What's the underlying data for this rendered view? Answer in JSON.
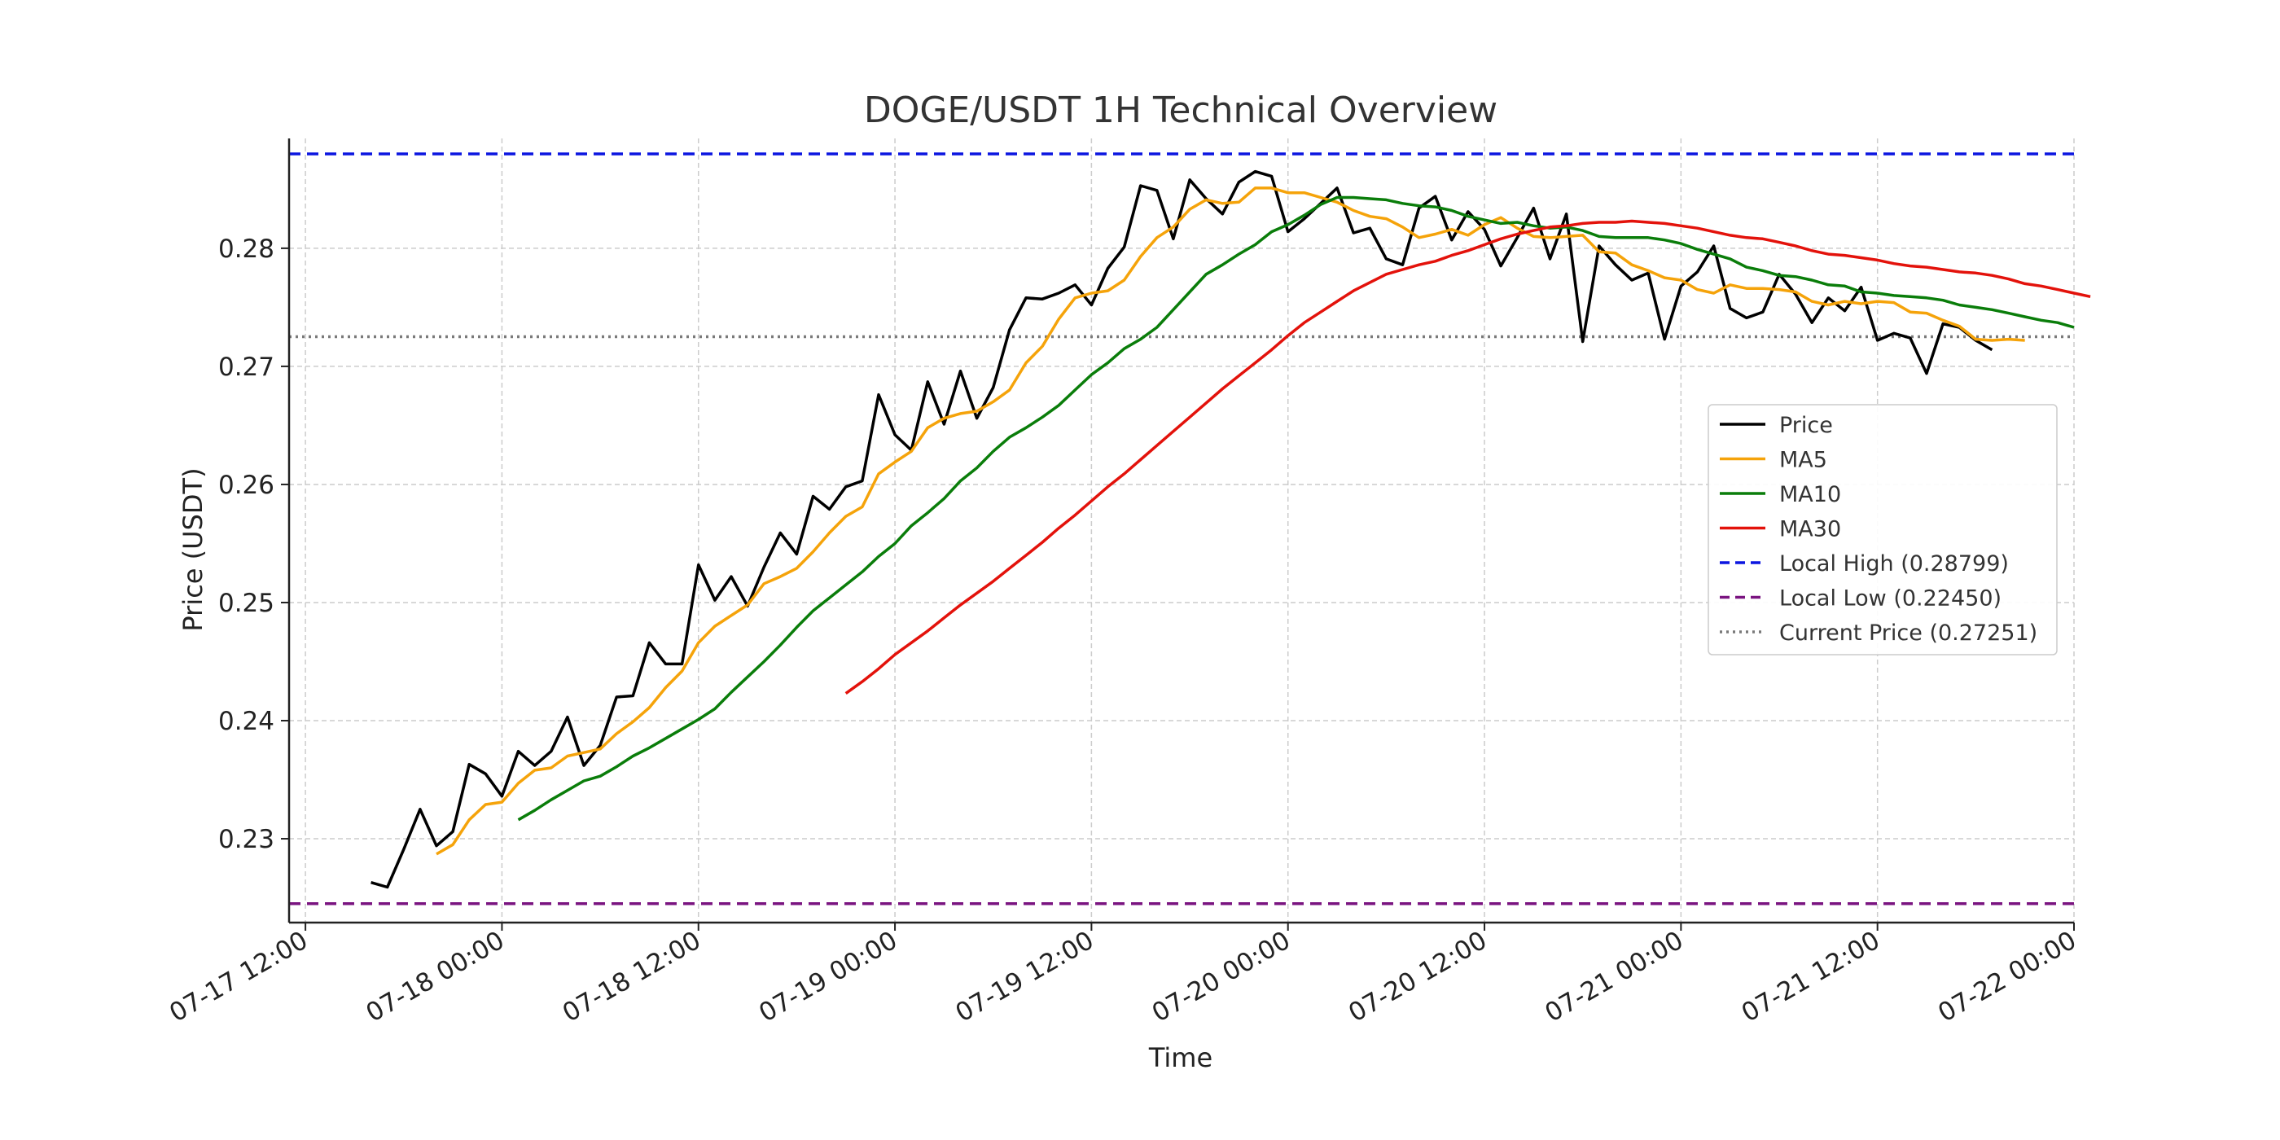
{
  "chart_data": {
    "type": "line",
    "title": "DOGE/USDT 1H Technical Overview",
    "xlabel": "Time",
    "ylabel": "Price (USDT)",
    "x_tick_labels": [
      "07-17 12:00",
      "07-18 00:00",
      "07-18 12:00",
      "07-19 00:00",
      "07-19 12:00",
      "07-20 00:00",
      "07-20 12:00",
      "07-21 00:00",
      "07-21 12:00",
      "07-22 00:00"
    ],
    "y_ticks": [
      0.23,
      0.24,
      0.25,
      0.26,
      0.27,
      0.28
    ],
    "y_tick_labels": [
      "0.23",
      "0.24",
      "0.25",
      "0.26",
      "0.27",
      "0.28"
    ],
    "xlim": [
      "07-17 11:00",
      "07-22 00:00"
    ],
    "ylim": [
      0.2229,
      0.2893
    ],
    "grid": true,
    "legend_position": "center-right",
    "series": [
      {
        "name": "Price",
        "color": "#000000",
        "x_start": "07-17 16:00",
        "step_hours": 1,
        "values": [
          0.2263,
          0.2259,
          0.2291,
          0.2325,
          0.2294,
          0.2306,
          0.2363,
          0.2355,
          0.2336,
          0.2374,
          0.2362,
          0.2374,
          0.2403,
          0.2362,
          0.2379,
          0.242,
          0.2421,
          0.2466,
          0.2448,
          0.2448,
          0.2532,
          0.2502,
          0.2522,
          0.2497,
          0.253,
          0.2559,
          0.2541,
          0.259,
          0.2579,
          0.2598,
          0.2603,
          0.2676,
          0.2642,
          0.2629,
          0.2687,
          0.2651,
          0.2696,
          0.2656,
          0.2682,
          0.2731,
          0.2758,
          0.2757,
          0.2762,
          0.2769,
          0.2752,
          0.2783,
          0.2801,
          0.2853,
          0.2849,
          0.2808,
          0.2858,
          0.2842,
          0.2829,
          0.2856,
          0.2865,
          0.2861,
          0.2814,
          0.2825,
          0.2838,
          0.2851,
          0.2813,
          0.2817,
          0.2791,
          0.2786,
          0.2834,
          0.2844,
          0.2807,
          0.2831,
          0.2816,
          0.2785,
          0.2809,
          0.2834,
          0.2791,
          0.2829,
          0.2721,
          0.2802,
          0.2786,
          0.2773,
          0.2779,
          0.2723,
          0.2768,
          0.278,
          0.2802,
          0.2749,
          0.2741,
          0.2746,
          0.2778,
          0.2761,
          0.2737,
          0.2758,
          0.2747,
          0.2767,
          0.2722,
          0.2728,
          0.2724,
          0.2694,
          0.2736,
          0.2733,
          0.2722,
          0.2714
        ]
      },
      {
        "name": "MA5",
        "color": "#f5a30a",
        "x_start": "07-17 20:00",
        "step_hours": 1,
        "values": [
          0.2287,
          0.2295,
          0.2316,
          0.2329,
          0.2331,
          0.2347,
          0.2358,
          0.236,
          0.237,
          0.2373,
          0.2376,
          0.2389,
          0.2399,
          0.2411,
          0.2428,
          0.2442,
          0.2466,
          0.248,
          0.2489,
          0.2498,
          0.2516,
          0.2522,
          0.2529,
          0.2543,
          0.2559,
          0.2573,
          0.2581,
          0.2609,
          0.2619,
          0.2628,
          0.2648,
          0.2656,
          0.266,
          0.2662,
          0.267,
          0.268,
          0.2703,
          0.2717,
          0.274,
          0.2758,
          0.2762,
          0.2764,
          0.2773,
          0.2793,
          0.2809,
          0.2818,
          0.2833,
          0.2841,
          0.2838,
          0.2839,
          0.2851,
          0.2851,
          0.2847,
          0.2847,
          0.2843,
          0.2839,
          0.2832,
          0.2827,
          0.2825,
          0.2818,
          0.2809,
          0.2812,
          0.2816,
          0.2811,
          0.282,
          0.2826,
          0.2817,
          0.281,
          0.2809,
          0.281,
          0.2811,
          0.2797,
          0.2796,
          0.2786,
          0.2781,
          0.2775,
          0.2773,
          0.2765,
          0.2762,
          0.2769,
          0.2766,
          0.2766,
          0.2765,
          0.2763,
          0.2755,
          0.2752,
          0.2755,
          0.2753,
          0.2755,
          0.2754,
          0.2746,
          0.2745,
          0.2739,
          0.2734,
          0.2723,
          0.2722,
          0.2723,
          0.2722
        ]
      },
      {
        "name": "MA10",
        "color": "#0a7d0a",
        "x_start": "07-18 01:00",
        "step_hours": 1,
        "values": [
          0.2316,
          0.2324,
          0.2333,
          0.2341,
          0.2349,
          0.2353,
          0.2361,
          0.237,
          0.2377,
          0.2385,
          0.2393,
          0.2401,
          0.241,
          0.2424,
          0.2437,
          0.245,
          0.2464,
          0.2479,
          0.2493,
          0.2504,
          0.2515,
          0.2526,
          0.2539,
          0.255,
          0.2565,
          0.2576,
          0.2588,
          0.2603,
          0.2614,
          0.2628,
          0.264,
          0.2648,
          0.2657,
          0.2667,
          0.268,
          0.2693,
          0.2703,
          0.2715,
          0.2723,
          0.2733,
          0.2748,
          0.2763,
          0.2778,
          0.2786,
          0.2795,
          0.2803,
          0.2814,
          0.282,
          0.2828,
          0.2837,
          0.2843,
          0.2843,
          0.2842,
          0.2841,
          0.2838,
          0.2836,
          0.2835,
          0.2832,
          0.2827,
          0.2824,
          0.2821,
          0.2822,
          0.2819,
          0.2817,
          0.2818,
          0.2815,
          0.281,
          0.2809,
          0.2809,
          0.2809,
          0.2807,
          0.2804,
          0.2799,
          0.2795,
          0.2791,
          0.2784,
          0.2781,
          0.2777,
          0.2776,
          0.2773,
          0.2769,
          0.2768,
          0.2763,
          0.2762,
          0.276,
          0.2759,
          0.2758,
          0.2756,
          0.2752,
          0.275,
          0.2748,
          0.2745,
          0.2742,
          0.2739,
          0.2737,
          0.2733
        ]
      },
      {
        "name": "MA30",
        "color": "#e3120b",
        "x_start": "07-18 21:00",
        "step_hours": 1,
        "values": [
          0.2423,
          0.2433,
          0.2444,
          0.2456,
          0.2466,
          0.2476,
          0.2487,
          0.2498,
          0.2508,
          0.2518,
          0.2529,
          0.254,
          0.2551,
          0.2563,
          0.2574,
          0.2586,
          0.2598,
          0.2609,
          0.2621,
          0.2633,
          0.2645,
          0.2657,
          0.2669,
          0.2681,
          0.2692,
          0.2703,
          0.2714,
          0.2726,
          0.2737,
          0.2746,
          0.2755,
          0.2764,
          0.2771,
          0.2778,
          0.2782,
          0.2786,
          0.2789,
          0.2794,
          0.2798,
          0.2803,
          0.2808,
          0.2812,
          0.2815,
          0.2818,
          0.2819,
          0.2821,
          0.2822,
          0.2822,
          0.2823,
          0.2822,
          0.2821,
          0.2819,
          0.2817,
          0.2814,
          0.2811,
          0.2809,
          0.2808,
          0.2805,
          0.2802,
          0.2798,
          0.2795,
          0.2794,
          0.2792,
          0.279,
          0.2787,
          0.2785,
          0.2784,
          0.2782,
          0.278,
          0.2779,
          0.2777,
          0.2774,
          0.277,
          0.2768,
          0.2765,
          0.2762,
          0.2759
        ]
      }
    ],
    "reference_lines": [
      {
        "name": "Local High (0.28799)",
        "value": 0.28799,
        "color": "#0c16e0",
        "style": "dashed"
      },
      {
        "name": "Local Low (0.22450)",
        "value": 0.2245,
        "color": "#7a1480",
        "style": "dashed"
      },
      {
        "name": "Current Price (0.27251)",
        "value": 0.27251,
        "color": "#7a7a7a",
        "style": "dotted"
      }
    ]
  }
}
